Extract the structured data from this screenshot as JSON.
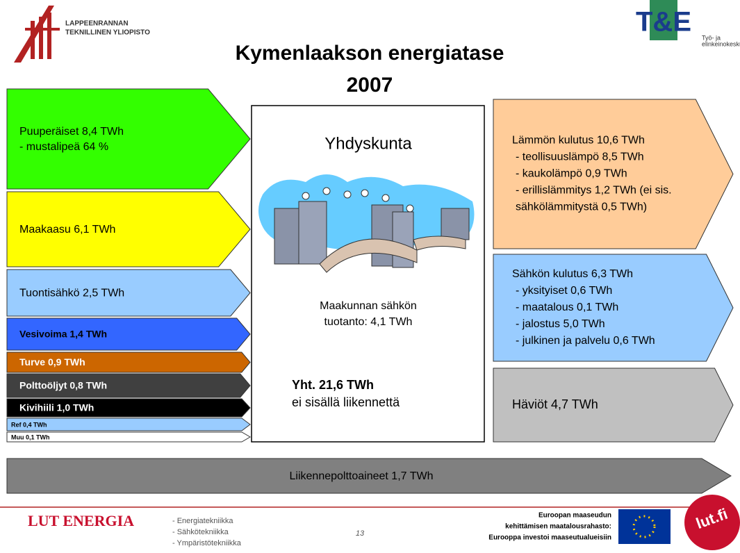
{
  "header": {
    "university": [
      "LAPPEENRANNAN",
      "TEKNILLINEN YLIOPISTO"
    ],
    "agency_mark": "T&E",
    "agency": [
      "Työ- ja",
      "elinkeinokesku"
    ],
    "title": [
      "Kymenlaakson energiatase",
      "2007"
    ]
  },
  "inputs": [
    {
      "lines": [
        "Puuperäiset 8,4 TWh",
        "- mustalipeä 64 %"
      ]
    },
    {
      "lines": [
        "Maakaasu 6,1 TWh"
      ]
    },
    {
      "lines": [
        "Tuontisähkö 2,5 TWh"
      ]
    },
    {
      "lines": [
        "Vesivoima 1,4 TWh"
      ]
    },
    {
      "lines": [
        "Turve 0,9 TWh"
      ]
    },
    {
      "lines": [
        "Polttoöljyt 0,8 TWh"
      ]
    },
    {
      "lines": [
        "Kivihiili 1,0 TWh"
      ]
    },
    {
      "lines": [
        "Ref  0,4 TWh"
      ]
    },
    {
      "lines": [
        "Muu  0,1 TWh"
      ]
    }
  ],
  "center": {
    "title": "Yhdyskunta",
    "production": [
      "Maakunnan sähkön",
      "tuotanto: 4,1 TWh"
    ],
    "total": "Yht. 21,6 TWh",
    "note": "ei sisällä liikennettä"
  },
  "outputs": [
    {
      "lines": [
        "Lämmön kulutus 10,6 TWh",
        "- teollisuuslämpö 8,5 TWh",
        "- kaukolämpö 0,9 TWh",
        "- erillislämmitys 1,2 TWh (ei sis.",
        "sähkölämmitystä 0,5 TWh)"
      ]
    },
    {
      "lines": [
        "Sähkön kulutus 6,3 TWh",
        "- yksityiset 0,6 TWh",
        "- maatalous 0,1 TWh",
        "- jalostus 5,0 TWh",
        "- julkinen ja palvelu 0,6 TWh"
      ]
    },
    {
      "lines": [
        "Häviöt 4,7 TWh"
      ]
    }
  ],
  "transport": "Liikennepolttoaineet 1,7 TWh",
  "footer": {
    "brand": "LUT ENERGIA",
    "departments": [
      "- Energiatekniikka",
      "- Sähkötekniikka",
      "- Ympäristötekniikka"
    ],
    "page": "13",
    "eu": [
      "Euroopan maaseudun",
      "kehittämisen  maatalousrahasto:",
      "Eurooppa investoi maaseutualueisiin"
    ],
    "badge": "lut.fi"
  }
}
